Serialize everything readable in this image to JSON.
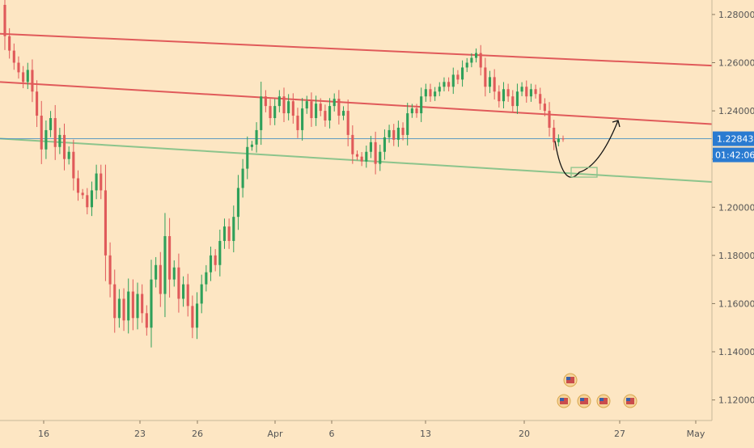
{
  "chart_data": {
    "type": "candlestick",
    "ylim": [
      1.1155,
      1.284
    ],
    "y_ticks": [
      "1.28000",
      "1.26000",
      "1.24000",
      "1.22000",
      "1.20000",
      "1.18000",
      "1.16000",
      "1.14000",
      "1.12000"
    ],
    "x_ticks": [
      "16",
      "23",
      "26",
      "Apr",
      "6",
      "13",
      "20",
      "27",
      "May"
    ],
    "current_price": {
      "label": "1.22843",
      "value": 1.22843
    },
    "countdown": {
      "label": "01:42:06"
    },
    "colors": {
      "up": "#2ea05a",
      "down": "#e05a5a",
      "background": "#fde6c3",
      "resistance": "#e05a5a",
      "support": "#8cc48c",
      "price_line": "#4a90c2",
      "badge": "#2a7bd1"
    },
    "trend_lines": [
      {
        "name": "upper-resistance",
        "color": "#e05a5a",
        "from": [
          "Mar 12",
          1.272
        ],
        "to": [
          "May 1",
          1.2588
        ]
      },
      {
        "name": "lower-resistance",
        "color": "#e05a5a",
        "from": [
          "Mar 12",
          1.252
        ],
        "to": [
          "May 1",
          1.2345
        ]
      },
      {
        "name": "support",
        "color": "#8cc48c",
        "from": [
          "Mar 12",
          1.2285
        ],
        "to": [
          "May 1",
          1.2105
        ]
      }
    ],
    "projection": {
      "path": [
        [
          "Apr 22",
          1.2275
        ],
        [
          "Apr 24",
          1.2145
        ],
        [
          "Apr 26",
          1.236
        ]
      ],
      "target_zone": [
        1.2125,
        1.2165
      ]
    },
    "candles": [
      [
        1.284,
        1.271
      ],
      [
        1.271,
        1.265
      ],
      [
        1.265,
        1.26
      ],
      [
        1.26,
        1.256
      ],
      [
        1.256,
        1.252
      ],
      [
        1.252,
        1.257
      ],
      [
        1.257,
        1.248
      ],
      [
        1.248,
        1.238
      ],
      [
        1.238,
        1.224
      ],
      [
        1.224,
        1.232
      ],
      [
        1.232,
        1.237
      ],
      [
        1.237,
        1.225
      ],
      [
        1.225,
        1.23
      ],
      [
        1.23,
        1.22
      ],
      [
        1.22,
        1.223
      ],
      [
        1.223,
        1.212
      ],
      [
        1.212,
        1.206
      ],
      [
        1.206,
        1.205
      ],
      [
        1.205,
        1.2
      ],
      [
        1.2,
        1.207
      ],
      [
        1.207,
        1.214
      ],
      [
        1.214,
        1.207
      ],
      [
        1.207,
        1.18
      ],
      [
        1.18,
        1.168
      ],
      [
        1.168,
        1.154
      ],
      [
        1.154,
        1.162
      ],
      [
        1.162,
        1.153
      ],
      [
        1.153,
        1.165
      ],
      [
        1.165,
        1.154
      ],
      [
        1.154,
        1.164
      ],
      [
        1.164,
        1.156
      ],
      [
        1.156,
        1.15
      ],
      [
        1.15,
        1.17
      ],
      [
        1.17,
        1.176
      ],
      [
        1.176,
        1.164
      ],
      [
        1.164,
        1.188
      ],
      [
        1.188,
        1.17
      ],
      [
        1.17,
        1.175
      ],
      [
        1.175,
        1.162
      ],
      [
        1.162,
        1.168
      ],
      [
        1.168,
        1.159
      ],
      [
        1.159,
        1.15
      ],
      [
        1.15,
        1.16
      ],
      [
        1.16,
        1.168
      ],
      [
        1.168,
        1.173
      ],
      [
        1.173,
        1.18
      ],
      [
        1.18,
        1.176
      ],
      [
        1.176,
        1.186
      ],
      [
        1.186,
        1.192
      ],
      [
        1.192,
        1.186
      ],
      [
        1.186,
        1.196
      ],
      [
        1.196,
        1.208
      ],
      [
        1.208,
        1.216
      ],
      [
        1.216,
        1.225
      ],
      [
        1.225,
        1.226
      ],
      [
        1.226,
        1.232
      ],
      [
        1.232,
        1.246
      ],
      [
        1.246,
        1.242
      ],
      [
        1.242,
        1.237
      ],
      [
        1.237,
        1.242
      ],
      [
        1.242,
        1.246
      ],
      [
        1.246,
        1.239
      ],
      [
        1.239,
        1.244
      ],
      [
        1.244,
        1.238
      ],
      [
        1.238,
        1.232
      ],
      [
        1.232,
        1.241
      ],
      [
        1.241,
        1.244
      ],
      [
        1.244,
        1.237
      ],
      [
        1.237,
        1.243
      ],
      [
        1.243,
        1.24
      ],
      [
        1.24,
        1.236
      ],
      [
        1.236,
        1.242
      ],
      [
        1.242,
        1.245
      ],
      [
        1.245,
        1.238
      ],
      [
        1.238,
        1.24
      ],
      [
        1.24,
        1.23
      ],
      [
        1.23,
        1.222
      ],
      [
        1.222,
        1.221
      ],
      [
        1.221,
        1.219
      ],
      [
        1.219,
        1.223
      ],
      [
        1.223,
        1.227
      ],
      [
        1.227,
        1.218
      ],
      [
        1.218,
        1.223
      ],
      [
        1.223,
        1.229
      ],
      [
        1.229,
        1.232
      ],
      [
        1.232,
        1.228
      ],
      [
        1.228,
        1.233
      ],
      [
        1.233,
        1.23
      ],
      [
        1.23,
        1.239
      ],
      [
        1.239,
        1.241
      ],
      [
        1.241,
        1.239
      ],
      [
        1.239,
        1.246
      ],
      [
        1.246,
        1.249
      ],
      [
        1.249,
        1.246
      ],
      [
        1.246,
        1.248
      ],
      [
        1.248,
        1.25
      ],
      [
        1.25,
        1.252
      ],
      [
        1.252,
        1.25
      ],
      [
        1.25,
        1.255
      ],
      [
        1.255,
        1.253
      ],
      [
        1.253,
        1.258
      ],
      [
        1.258,
        1.26
      ],
      [
        1.26,
        1.262
      ],
      [
        1.262,
        1.264
      ],
      [
        1.264,
        1.258
      ],
      [
        1.258,
        1.25
      ],
      [
        1.25,
        1.254
      ],
      [
        1.254,
        1.248
      ],
      [
        1.248,
        1.244
      ],
      [
        1.244,
        1.249
      ],
      [
        1.249,
        1.246
      ],
      [
        1.246,
        1.242
      ],
      [
        1.242,
        1.248
      ],
      [
        1.248,
        1.25
      ],
      [
        1.25,
        1.246
      ],
      [
        1.246,
        1.249
      ],
      [
        1.249,
        1.247
      ],
      [
        1.247,
        1.243
      ],
      [
        1.243,
        1.24
      ],
      [
        1.24,
        1.233
      ],
      [
        1.233,
        1.227
      ],
      [
        1.227,
        1.2285
      ],
      [
        1.2285,
        1.2284
      ]
    ]
  }
}
